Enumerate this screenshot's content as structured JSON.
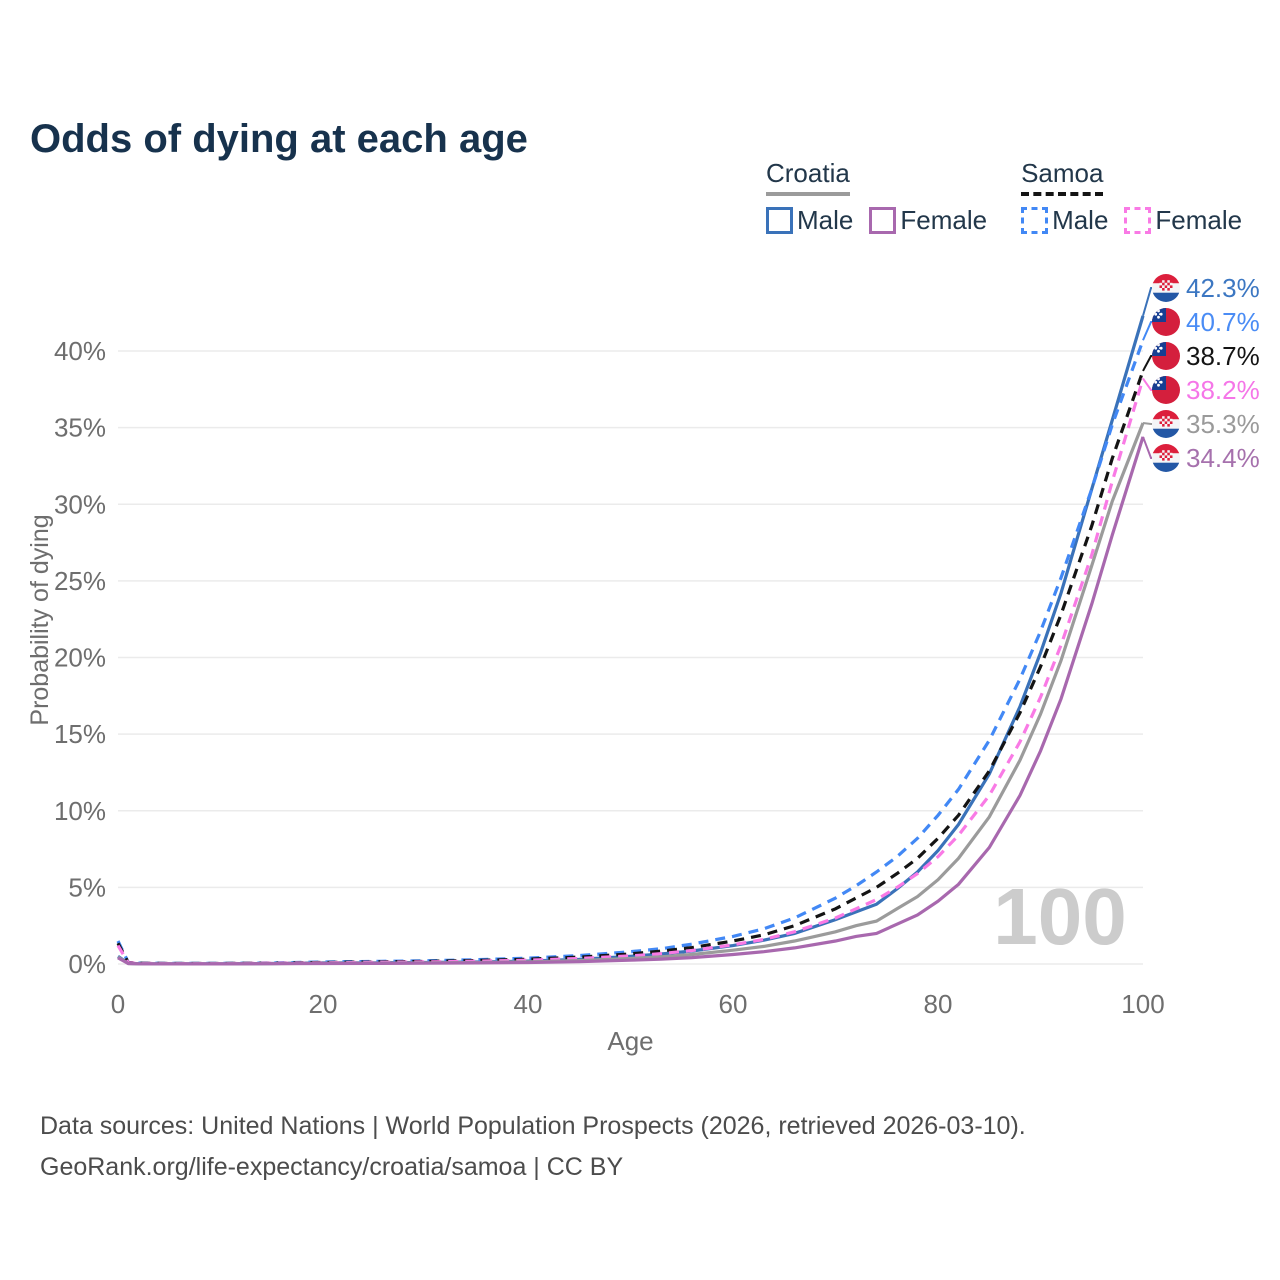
{
  "title": "Odds of dying at each age",
  "legend": {
    "groups": [
      {
        "country": "Croatia",
        "underline_color": "#9b9b9b",
        "underline_dash": false,
        "items": [
          {
            "label": "Male",
            "color": "#3a72b9",
            "dash": false
          },
          {
            "label": "Female",
            "color": "#a868ae",
            "dash": false
          }
        ]
      },
      {
        "country": "Samoa",
        "underline_color": "#141414",
        "underline_dash": true,
        "items": [
          {
            "label": "Male",
            "color": "#4288f5",
            "dash": true
          },
          {
            "label": "Female",
            "color": "#f97ae5",
            "dash": true
          }
        ]
      }
    ]
  },
  "chart_data": {
    "type": "line",
    "title": "Odds of dying at each age",
    "xlabel": "Age",
    "ylabel": "Probability of dying",
    "xlim": [
      0,
      100
    ],
    "ylim_percent": [
      0,
      44
    ],
    "x_tick_labels": [
      "0",
      "20",
      "40",
      "60",
      "80",
      "100"
    ],
    "x_tick_values": [
      0,
      20,
      40,
      60,
      80,
      100
    ],
    "y_tick_labels": [
      "0%",
      "5%",
      "10%",
      "15%",
      "20%",
      "25%",
      "30%",
      "35%",
      "40%"
    ],
    "y_tick_values": [
      0,
      5,
      10,
      15,
      20,
      25,
      30,
      35,
      40
    ],
    "grid": "horizontal",
    "annotation": {
      "text": "100",
      "color": "#cccccc"
    },
    "series": [
      {
        "name": "Croatia Male",
        "country": "croatia",
        "sex": "male",
        "color": "#3a72b9",
        "dash": false,
        "end_value": 42.3,
        "end_label": "42.3%",
        "end_label_color": "#3c77c2",
        "x": [
          0,
          1,
          2,
          5,
          10,
          15,
          20,
          25,
          30,
          35,
          40,
          45,
          50,
          53,
          56,
          60,
          63,
          66,
          70,
          72,
          74,
          76,
          78,
          80,
          82,
          85,
          88,
          90,
          92,
          95,
          97,
          100
        ],
        "y": [
          0.5,
          0.04,
          0.02,
          0.01,
          0.01,
          0.03,
          0.07,
          0.08,
          0.1,
          0.13,
          0.19,
          0.3,
          0.5,
          0.65,
          0.85,
          1.2,
          1.55,
          2.0,
          2.9,
          3.4,
          3.9,
          4.9,
          6.0,
          7.4,
          9.1,
          12.4,
          16.8,
          20.3,
          24.2,
          31.0,
          35.5,
          42.3
        ]
      },
      {
        "name": "Samoa Male",
        "country": "samoa",
        "sex": "male",
        "color": "#4288f5",
        "dash": true,
        "end_value": 40.7,
        "end_label": "40.7%",
        "end_label_color": "#4a8cf5",
        "x": [
          0,
          1,
          2,
          5,
          10,
          15,
          20,
          25,
          30,
          35,
          40,
          45,
          50,
          53,
          56,
          60,
          63,
          66,
          70,
          72,
          74,
          76,
          78,
          80,
          82,
          85,
          88,
          90,
          92,
          95,
          97,
          100
        ],
        "y": [
          1.5,
          0.1,
          0.06,
          0.04,
          0.04,
          0.07,
          0.13,
          0.17,
          0.21,
          0.28,
          0.38,
          0.55,
          0.8,
          1.0,
          1.3,
          1.8,
          2.3,
          3.0,
          4.3,
          5.1,
          6.0,
          7.0,
          8.2,
          9.7,
          11.4,
          14.6,
          18.6,
          21.7,
          25.2,
          31.0,
          35.2,
          40.7
        ]
      },
      {
        "name": "Samoa",
        "country": "samoa",
        "sex": "both",
        "color": "#141414",
        "dash": true,
        "end_value": 38.7,
        "end_label": "38.7%",
        "end_label_color": "#141414",
        "x": [
          0,
          1,
          2,
          5,
          10,
          15,
          20,
          25,
          30,
          35,
          40,
          45,
          50,
          53,
          56,
          60,
          63,
          66,
          70,
          72,
          74,
          76,
          78,
          80,
          82,
          85,
          88,
          90,
          92,
          95,
          97,
          100
        ],
        "y": [
          1.35,
          0.09,
          0.05,
          0.03,
          0.03,
          0.06,
          0.1,
          0.14,
          0.17,
          0.23,
          0.31,
          0.45,
          0.66,
          0.84,
          1.07,
          1.5,
          1.9,
          2.5,
          3.6,
          4.3,
          5.0,
          5.9,
          6.9,
          8.2,
          9.7,
          12.6,
          16.4,
          19.4,
          22.8,
          28.6,
          33.0,
          38.7
        ]
      },
      {
        "name": "Samoa Female",
        "country": "samoa",
        "sex": "female",
        "color": "#f97ae5",
        "dash": true,
        "end_value": 38.2,
        "end_label": "38.2%",
        "end_label_color": "#f576e8",
        "x": [
          0,
          1,
          2,
          5,
          10,
          15,
          20,
          25,
          30,
          35,
          40,
          45,
          50,
          53,
          56,
          60,
          63,
          66,
          70,
          72,
          74,
          76,
          78,
          80,
          82,
          85,
          88,
          90,
          92,
          95,
          97,
          100
        ],
        "y": [
          1.2,
          0.08,
          0.04,
          0.025,
          0.025,
          0.05,
          0.08,
          0.11,
          0.14,
          0.18,
          0.25,
          0.36,
          0.53,
          0.68,
          0.88,
          1.25,
          1.6,
          2.1,
          3.0,
          3.6,
          4.2,
          5.0,
          5.9,
          7.0,
          8.4,
          11.0,
          14.5,
          17.4,
          20.8,
          26.7,
          31.5,
          38.2
        ]
      },
      {
        "name": "Croatia",
        "country": "croatia",
        "sex": "both",
        "color": "#9b9b9b",
        "dash": false,
        "end_value": 35.3,
        "end_label": "35.3%",
        "end_label_color": "#9a9a9a",
        "x": [
          0,
          1,
          2,
          5,
          10,
          15,
          20,
          25,
          30,
          35,
          40,
          45,
          50,
          53,
          56,
          60,
          63,
          66,
          70,
          72,
          74,
          76,
          78,
          80,
          82,
          85,
          88,
          90,
          92,
          95,
          97,
          100
        ],
        "y": [
          0.45,
          0.035,
          0.015,
          0.008,
          0.008,
          0.025,
          0.05,
          0.06,
          0.07,
          0.1,
          0.14,
          0.22,
          0.36,
          0.47,
          0.62,
          0.9,
          1.15,
          1.5,
          2.1,
          2.5,
          2.8,
          3.6,
          4.4,
          5.5,
          6.9,
          9.6,
          13.3,
          16.3,
          19.8,
          26.0,
          30.2,
          35.3
        ]
      },
      {
        "name": "Croatia Female",
        "country": "croatia",
        "sex": "female",
        "color": "#a868ae",
        "dash": false,
        "end_value": 34.4,
        "end_label": "34.4%",
        "end_label_color": "#a671ad",
        "x": [
          0,
          1,
          2,
          5,
          10,
          15,
          20,
          25,
          30,
          35,
          40,
          45,
          50,
          53,
          56,
          60,
          63,
          66,
          70,
          72,
          74,
          76,
          78,
          80,
          82,
          85,
          88,
          90,
          92,
          95,
          97,
          100
        ],
        "y": [
          0.4,
          0.03,
          0.012,
          0.006,
          0.006,
          0.018,
          0.032,
          0.04,
          0.05,
          0.07,
          0.1,
          0.15,
          0.25,
          0.32,
          0.42,
          0.62,
          0.8,
          1.05,
          1.5,
          1.8,
          2.0,
          2.6,
          3.2,
          4.1,
          5.2,
          7.6,
          11.0,
          13.9,
          17.3,
          23.5,
          28.0,
          34.4
        ]
      }
    ]
  },
  "footer": {
    "line1": "Data sources: United Nations | World Population Prospects (2026, retrieved 2026-03-10).",
    "line2": "GeoRank.org/life-expectancy/croatia/samoa | CC BY"
  },
  "colors": {
    "title": "#17324d",
    "axis_text": "#6e6e6e",
    "gridline": "#ebebeb",
    "watermark": "#cccccc",
    "footer_text": "#4c4c4c"
  }
}
